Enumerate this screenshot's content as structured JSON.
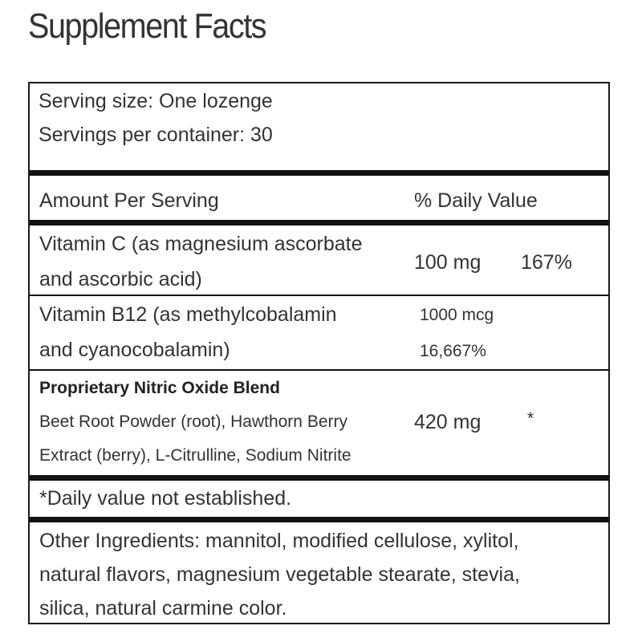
{
  "title": "Supplement Facts",
  "serving": {
    "size": "Serving size: One lozenge",
    "per_container": "Servings per container: 30"
  },
  "header": {
    "amount": "Amount Per Serving",
    "dv": "% Daily Value"
  },
  "rows": [
    {
      "name": "Vitamin C",
      "desc_line1": "(as magnesium ascorbate",
      "desc_line2": "and ascorbic acid)",
      "amount": "100 mg",
      "dv": "167%"
    },
    {
      "name": "Vitamin B12",
      "desc_line1": "(as methylcobalamin",
      "desc_line2": "and cyanocobalamin)",
      "amount": "1000 mcg",
      "dv": "16,667%"
    },
    {
      "name": "Proprietary Nitric Oxide Blend",
      "desc_line1": "Beet Root Powder (root), Hawthorn Berry",
      "desc_line2": "Extract (berry), L-Citrulline, Sodium Nitrite",
      "amount": "420 mg",
      "dv": "*"
    }
  ],
  "footnote": "*Daily value not established.",
  "other_ingredients": {
    "line1": "Other Ingredients: mannitol, modified cellulose, xylitol,",
    "line2": "natural flavors, magnesium vegetable stearate, stevia,",
    "line3": "silica, natural carmine color."
  }
}
